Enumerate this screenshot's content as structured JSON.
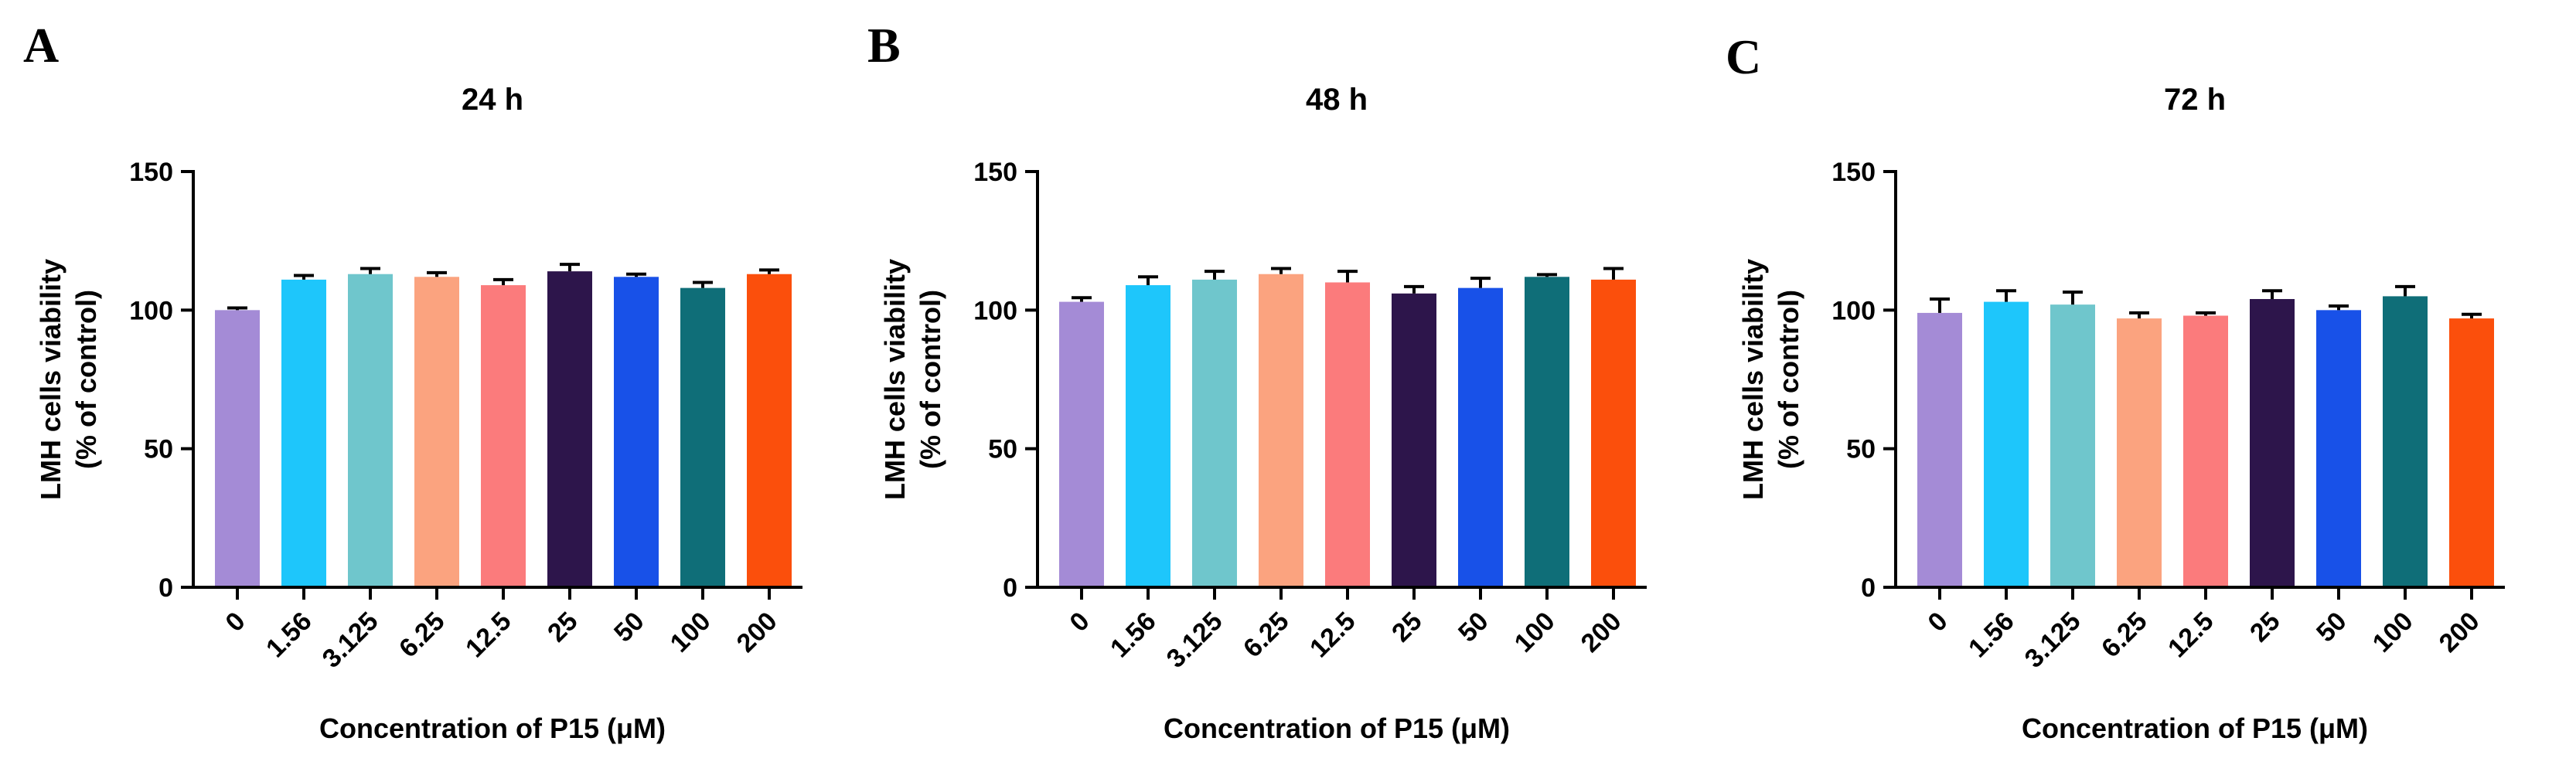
{
  "figure": {
    "panel_letters": [
      "A",
      "B",
      "C"
    ]
  },
  "bar_colors": [
    "#a48bd6",
    "#1ec6fb",
    "#6fc6cc",
    "#fba37f",
    "#fb7b7c",
    "#2d154b",
    "#1851e8",
    "#0f6e78",
    "#fb4f0c"
  ],
  "chart_data": [
    {
      "type": "bar",
      "title": "24 h",
      "xlabel": "Concentration of P15 (μM)",
      "ylabel_line1": "LMH cells viability",
      "ylabel_line2": "(% of control)",
      "categories": [
        "0",
        "1.56",
        "3.125",
        "6.25",
        "12.5",
        "25",
        "50",
        "100",
        "200"
      ],
      "values": [
        100,
        111,
        113,
        112,
        109,
        114,
        112,
        108,
        113
      ],
      "errors": [
        0.8,
        1.5,
        2,
        1.5,
        2,
        2.5,
        1,
        2,
        1.5
      ],
      "ylim": [
        0,
        150
      ],
      "yticks": [
        "0",
        "50",
        "100",
        "150"
      ]
    },
    {
      "type": "bar",
      "title": "48 h",
      "xlabel": "Concentration of P15 (μM)",
      "ylabel_line1": "LMH cells viability",
      "ylabel_line2": "(% of control)",
      "categories": [
        "0",
        "1.56",
        "3.125",
        "6.25",
        "12.5",
        "25",
        "50",
        "100",
        "200"
      ],
      "values": [
        103,
        109,
        111,
        113,
        110,
        106,
        108,
        112,
        111
      ],
      "errors": [
        1.5,
        3,
        3,
        2,
        4,
        2.5,
        3.5,
        0.8,
        4
      ],
      "ylim": [
        0,
        150
      ],
      "yticks": [
        "0",
        "50",
        "100",
        "150"
      ]
    },
    {
      "type": "bar",
      "title": "72 h",
      "xlabel": "Concentration of P15 (μM)",
      "ylabel_line1": "LMH cells viability",
      "ylabel_line2": "(% of control)",
      "categories": [
        "0",
        "1.56",
        "3.125",
        "6.25",
        "12.5",
        "25",
        "50",
        "100",
        "200"
      ],
      "values": [
        99,
        103,
        102,
        97,
        98,
        104,
        100,
        105,
        97
      ],
      "errors": [
        5,
        4,
        4.5,
        2,
        1,
        3,
        1.5,
        3.5,
        1.5
      ],
      "ylim": [
        0,
        150
      ],
      "yticks": [
        "0",
        "50",
        "100",
        "150"
      ]
    }
  ]
}
